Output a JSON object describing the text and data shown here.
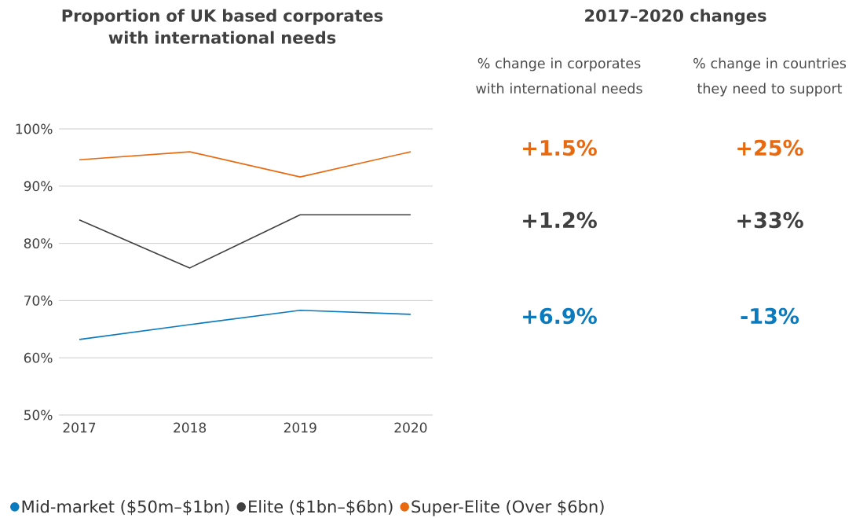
{
  "chart_data": [
    {
      "type": "line",
      "title": "Proportion of UK based corporates with international needs",
      "categories": [
        "2017",
        "2018",
        "2019",
        "2020"
      ],
      "series": [
        {
          "name": "Mid-market ($50m–$1bn)",
          "color": "#0a7bbf",
          "values": [
            63.2,
            65.8,
            68.3,
            67.6
          ]
        },
        {
          "name": "Elite ($1bn–$6bn)",
          "color": "#404040",
          "values": [
            84.1,
            75.7,
            85.0,
            85.0
          ]
        },
        {
          "name": "Super-Elite (Over $6bn)",
          "color": "#e8690f",
          "values": [
            94.6,
            96.0,
            91.6,
            96.0
          ]
        }
      ],
      "ylim": [
        50,
        100
      ],
      "yticks": [
        {
          "value": 50,
          "label": "50%"
        },
        {
          "value": 60,
          "label": "60%"
        },
        {
          "value": 70,
          "label": "70%"
        },
        {
          "value": 80,
          "label": "80%"
        },
        {
          "value": 90,
          "label": "90%"
        },
        {
          "value": 100,
          "label": "100%"
        }
      ],
      "grid": "y",
      "legend": "bottom"
    },
    {
      "type": "other",
      "title": "2017–2020 changes",
      "categories": [
        "% change in corporates with international needs",
        "% change in countries they need to support"
      ],
      "series": [
        {
          "color": "#e8690f",
          "values": [
            1.5,
            25
          ],
          "value_labels": [
            "+1.5%",
            "+25%"
          ]
        },
        {
          "color": "#404040",
          "values": [
            1.2,
            33
          ],
          "value_labels": [
            "+1.2%",
            "+33%"
          ]
        },
        {
          "color": "#0a7bbf",
          "values": [
            6.9,
            -13
          ],
          "value_labels": [
            "+6.9%",
            "-13%"
          ]
        }
      ]
    }
  ]
}
